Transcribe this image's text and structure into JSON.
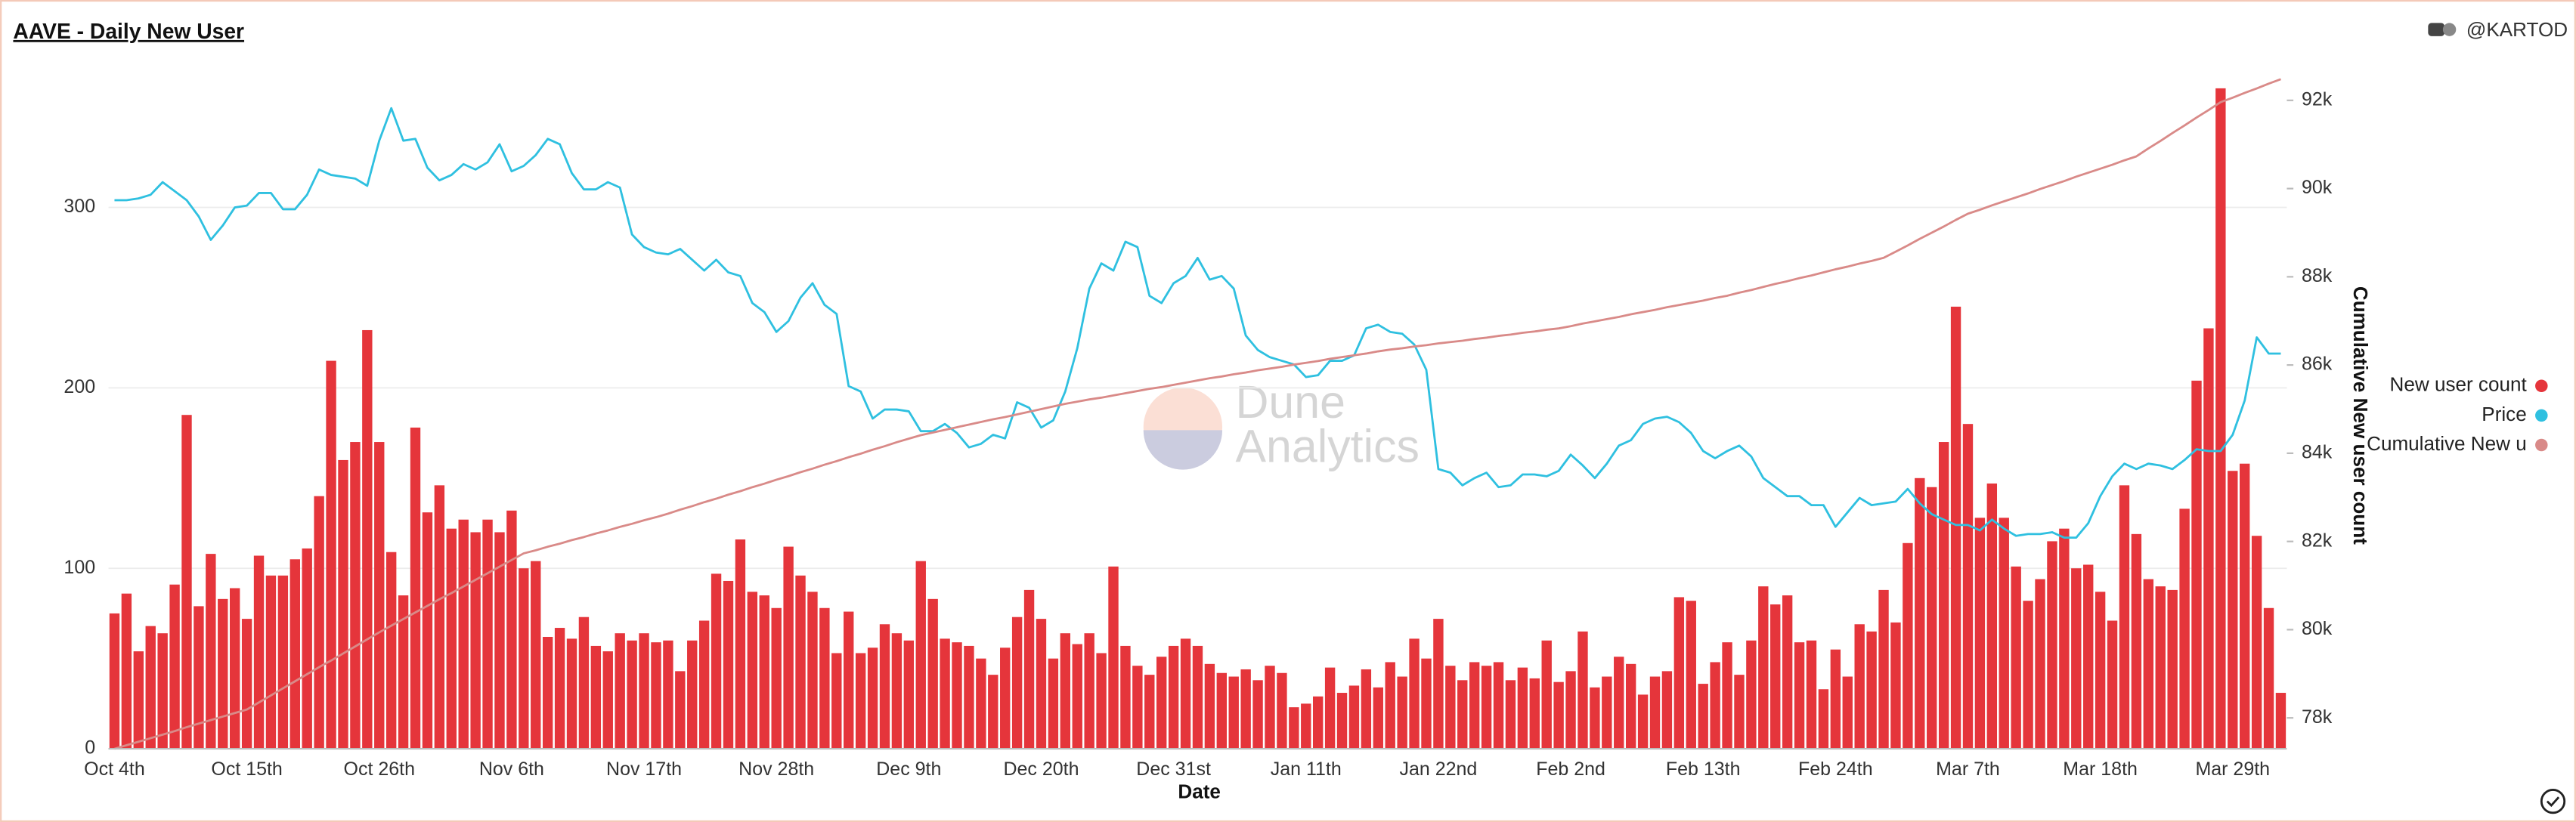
{
  "chart_data": {
    "type": "bar",
    "title": "AAVE - Daily New User",
    "author": "@KARTOD",
    "watermark": [
      "Dune",
      "Analytics"
    ],
    "xlabel": "Date",
    "y2label": "Cumulative New user count",
    "categories": [
      "Oct 4th",
      null,
      null,
      null,
      null,
      null,
      null,
      null,
      null,
      null,
      null,
      "Oct 15th",
      null,
      null,
      null,
      null,
      null,
      null,
      null,
      null,
      null,
      null,
      "Oct 26th",
      null,
      null,
      null,
      null,
      null,
      null,
      null,
      null,
      null,
      null,
      "Nov 6th",
      null,
      null,
      null,
      null,
      null,
      null,
      null,
      null,
      null,
      null,
      "Nov 17th",
      null,
      null,
      null,
      null,
      null,
      null,
      null,
      null,
      null,
      null,
      "Nov 28th",
      null,
      null,
      null,
      null,
      null,
      null,
      null,
      null,
      null,
      null,
      "Dec 9th",
      null,
      null,
      null,
      null,
      null,
      null,
      null,
      null,
      null,
      null,
      "Dec 20th",
      null,
      null,
      null,
      null,
      null,
      null,
      null,
      null,
      null,
      null,
      "Dec 31st",
      null,
      null,
      null,
      null,
      null,
      null,
      null,
      null,
      null,
      null,
      "Jan 11th",
      null,
      null,
      null,
      null,
      null,
      null,
      null,
      null,
      null,
      null,
      "Jan 22nd",
      null,
      null,
      null,
      null,
      null,
      null,
      null,
      null,
      null,
      null,
      "Feb 2nd",
      null,
      null,
      null,
      null,
      null,
      null,
      null,
      null,
      null,
      null,
      "Feb 13th",
      null,
      null,
      null,
      null,
      null,
      null,
      null,
      null,
      null,
      null,
      "Feb 24th",
      null,
      null,
      null,
      null,
      null,
      null,
      null,
      null,
      null,
      null,
      "Mar 7th",
      null,
      null,
      null,
      null,
      null,
      null,
      null,
      null,
      null,
      null,
      "Mar 18th",
      null,
      null,
      null,
      null,
      null,
      null,
      null,
      null,
      null,
      null,
      "Mar 29th",
      null,
      null,
      null,
      null
    ],
    "series": [
      {
        "name": "New user count",
        "type": "bar",
        "color": "#e5353b",
        "values": [
          75,
          86,
          54,
          68,
          64,
          91,
          185,
          79,
          108,
          83,
          89,
          72,
          107,
          96,
          96,
          105,
          111,
          140,
          215,
          160,
          170,
          232,
          170,
          109,
          85,
          178,
          131,
          146,
          122,
          127,
          120,
          127,
          120,
          132,
          100,
          104,
          62,
          67,
          61,
          73,
          57,
          54,
          64,
          60,
          64,
          59,
          60,
          43,
          60,
          71,
          97,
          93,
          116,
          87,
          85,
          78,
          112,
          96,
          87,
          78,
          53,
          76,
          53,
          56,
          69,
          64,
          60,
          104,
          83,
          61,
          59,
          57,
          50,
          41,
          56,
          73,
          88,
          72,
          50,
          64,
          58,
          64,
          53,
          101,
          57,
          46,
          41,
          51,
          57,
          61,
          57,
          47,
          42,
          40,
          44,
          38,
          46,
          42,
          23,
          25,
          29,
          45,
          31,
          35,
          44,
          34,
          48,
          40,
          61,
          50,
          72,
          46,
          38,
          48,
          46,
          48,
          38,
          45,
          39,
          60,
          37,
          43,
          65,
          34,
          40,
          51,
          47,
          30,
          40,
          43,
          84,
          82,
          36,
          48,
          59,
          41,
          60,
          90,
          80,
          85,
          59,
          60,
          33,
          55,
          40,
          69,
          65,
          88,
          70,
          114,
          150,
          145,
          170,
          245,
          180,
          128,
          147,
          128,
          101,
          82,
          94,
          115,
          122,
          100,
          102,
          87,
          71,
          146,
          119,
          94,
          90,
          88,
          133,
          204,
          233,
          366,
          154,
          158,
          118,
          78,
          31
        ]
      },
      {
        "name": "Price",
        "type": "line",
        "color": "#2fc0e0",
        "values": [
          304,
          304,
          305,
          307,
          314,
          309,
          304,
          295,
          282,
          290,
          300,
          301,
          308,
          308,
          299,
          299,
          307,
          321,
          318,
          317,
          316,
          312,
          337,
          355,
          337,
          338,
          322,
          315,
          318,
          324,
          321,
          325,
          335,
          320,
          323,
          329,
          338,
          335,
          319,
          310,
          310,
          314,
          311,
          285,
          278,
          275,
          274,
          277,
          271,
          265,
          271,
          264,
          262,
          247,
          242,
          231,
          237,
          250,
          258,
          246,
          241,
          201,
          198,
          183,
          188,
          188,
          187,
          176,
          176,
          180,
          175,
          167,
          169,
          174,
          172,
          192,
          189,
          178,
          182,
          198,
          222,
          255,
          269,
          265,
          281,
          278,
          251,
          247,
          258,
          262,
          272,
          260,
          262,
          255,
          229,
          221,
          217,
          215,
          213,
          206,
          207,
          215,
          215,
          218,
          233,
          235,
          231,
          230,
          224,
          210,
          155,
          153,
          146,
          150,
          153,
          145,
          146,
          152,
          152,
          151,
          154,
          163,
          157,
          150,
          158,
          168,
          171,
          180,
          183,
          184,
          181,
          175,
          165,
          161,
          165,
          168,
          162,
          150,
          145,
          140,
          140,
          135,
          135,
          123,
          131,
          139,
          135,
          136,
          137,
          144,
          136,
          130,
          127,
          124,
          124,
          121,
          127,
          122,
          118,
          119,
          119,
          120,
          117,
          117,
          125,
          140,
          151,
          158,
          155,
          158,
          157,
          155,
          160,
          166,
          165,
          165,
          174,
          193,
          228,
          219,
          219
        ]
      },
      {
        "name": "Cumulative New u",
        "type": "line",
        "axis": "y2",
        "color": "#d98a88",
        "values": [
          77300,
          77380,
          77460,
          77540,
          77620,
          77700,
          77790,
          77870,
          77950,
          78030,
          78110,
          78190,
          78350,
          78510,
          78670,
          78830,
          78990,
          79150,
          79300,
          79460,
          79620,
          79780,
          79940,
          80090,
          80240,
          80390,
          80540,
          80690,
          80830,
          80980,
          81130,
          81280,
          81430,
          81580,
          81730,
          81800,
          81880,
          81950,
          82030,
          82100,
          82180,
          82250,
          82330,
          82400,
          82480,
          82550,
          82630,
          82720,
          82800,
          82890,
          82970,
          83060,
          83140,
          83230,
          83310,
          83400,
          83480,
          83570,
          83650,
          83740,
          83820,
          83910,
          83990,
          84080,
          84160,
          84250,
          84330,
          84410,
          84470,
          84530,
          84590,
          84650,
          84710,
          84770,
          84820,
          84880,
          84940,
          85000,
          85060,
          85120,
          85170,
          85220,
          85260,
          85310,
          85360,
          85410,
          85460,
          85500,
          85550,
          85600,
          85650,
          85700,
          85740,
          85790,
          85830,
          85880,
          85920,
          85960,
          86010,
          86050,
          86090,
          86140,
          86180,
          86220,
          86260,
          86310,
          86350,
          86380,
          86420,
          86450,
          86490,
          86520,
          86550,
          86590,
          86620,
          86660,
          86690,
          86730,
          86760,
          86800,
          86830,
          86880,
          86940,
          86990,
          87040,
          87090,
          87150,
          87200,
          87250,
          87310,
          87360,
          87410,
          87460,
          87520,
          87570,
          87640,
          87700,
          87770,
          87840,
          87900,
          87970,
          88030,
          88100,
          88170,
          88230,
          88300,
          88360,
          88430,
          88570,
          88710,
          88860,
          89000,
          89140,
          89290,
          89430,
          89520,
          89620,
          89710,
          89800,
          89890,
          89990,
          90080,
          90170,
          90270,
          90360,
          90450,
          90540,
          90640,
          90730,
          90910,
          91080,
          91260,
          91430,
          91610,
          91780,
          91960,
          92060,
          92170,
          92270,
          92380,
          92480
        ]
      }
    ],
    "ylim": [
      0,
      374
    ],
    "yticks": [
      0,
      100,
      200,
      300
    ],
    "y2lim": [
      77300,
      92600
    ],
    "y2ticks": [
      {
        "value": 78000,
        "label": "78k"
      },
      {
        "value": 80000,
        "label": "80k"
      },
      {
        "value": 82000,
        "label": "82k"
      },
      {
        "value": 84000,
        "label": "84k"
      },
      {
        "value": 86000,
        "label": "86k"
      },
      {
        "value": 88000,
        "label": "88k"
      },
      {
        "value": 90000,
        "label": "90k"
      },
      {
        "value": 92000,
        "label": "92k"
      }
    ],
    "grid": true,
    "legend": "right"
  }
}
